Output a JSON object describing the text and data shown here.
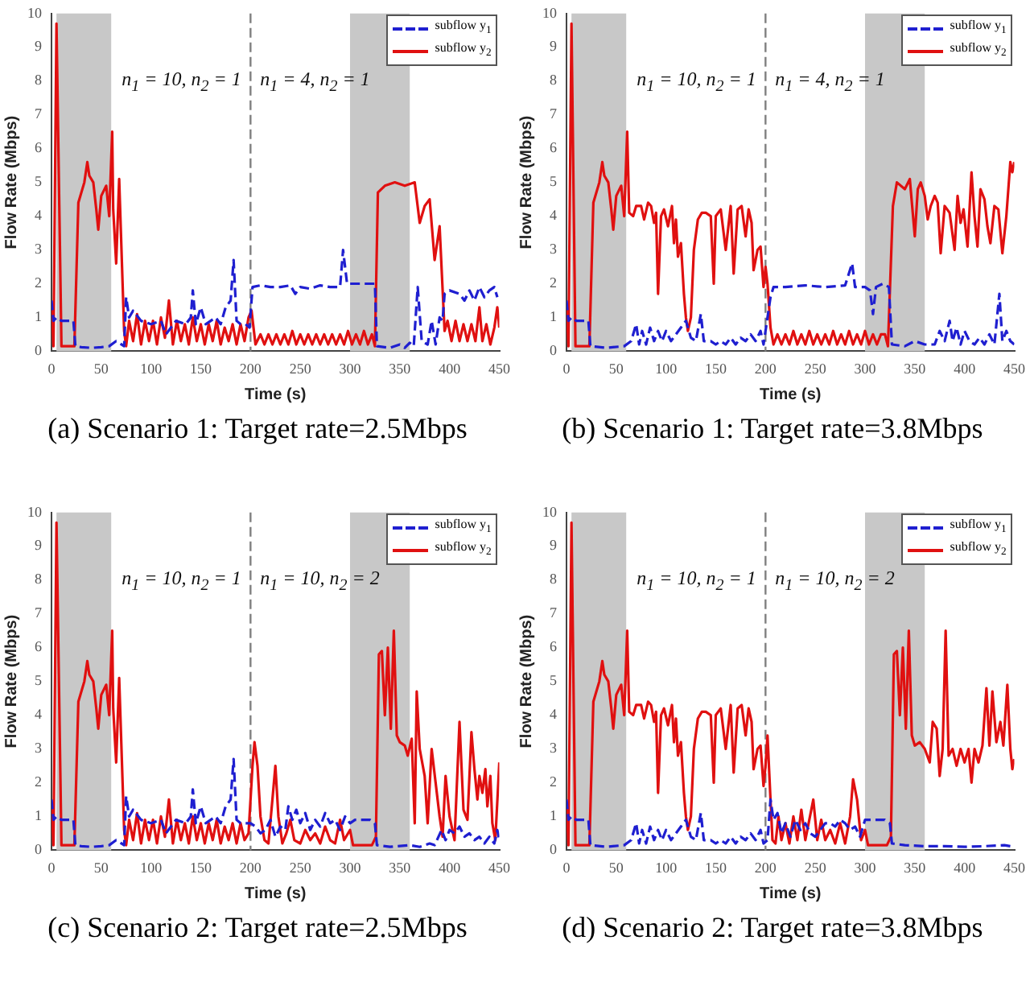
{
  "chart_data": [
    {
      "type": "line",
      "title": "(a) Scenario 1: Target rate=2.5Mbps",
      "xlabel": "Time (s)",
      "ylabel": "Flow Rate (Mbps)",
      "xlim": [
        0,
        450
      ],
      "ylim": [
        0,
        10
      ],
      "xticks": [
        0,
        50,
        100,
        150,
        200,
        250,
        300,
        350,
        400,
        450
      ],
      "yticks": [
        0,
        1,
        2,
        3,
        4,
        5,
        6,
        7,
        8,
        9,
        10
      ],
      "grid": false,
      "legend": "top right",
      "marker": "none",
      "annotations": [
        "n$_{1}$ = 10, n$_{2}$ = 1",
        "n$_{1}$ = 4, n$_{2}$ = 1"
      ],
      "ref_lines": [
        {
          "axis": "x",
          "value": 200,
          "color": "#808080",
          "line_style": "dashed"
        }
      ],
      "bands": [
        {
          "axis": "x",
          "from": 5,
          "to": 60,
          "color": "#c8c8c8"
        },
        {
          "axis": "x",
          "from": 300,
          "to": 360,
          "color": "#c8c8c8"
        }
      ],
      "series": [
        {
          "name": "subflow y$_{1}$",
          "color": "#1f1fd0",
          "line_style": "dashed",
          "x": [
            0,
            2,
            5,
            10,
            15,
            22,
            24,
            30,
            40,
            50,
            58,
            65,
            73,
            75,
            78,
            82,
            90,
            100,
            110,
            115,
            125,
            135,
            140,
            142,
            145,
            150,
            155,
            160,
            165,
            170,
            175,
            180,
            183,
            186,
            190,
            195,
            199,
            202,
            210,
            220,
            230,
            240,
            245,
            250,
            260,
            270,
            280,
            290,
            293,
            297,
            305,
            320,
            325,
            327,
            340,
            350,
            355,
            360,
            364,
            368,
            372,
            378,
            382,
            386,
            390,
            393,
            395,
            400,
            410,
            415,
            420,
            425,
            430,
            435,
            440,
            445,
            448
          ],
          "values": [
            1.5,
            0.9,
            1.0,
            0.9,
            0.9,
            0.9,
            0.15,
            0.12,
            0.1,
            0.12,
            0.15,
            0.3,
            0.15,
            1.6,
            1.0,
            1.2,
            0.9,
            0.8,
            0.9,
            0.5,
            0.9,
            0.8,
            1.0,
            1.8,
            0.8,
            1.3,
            0.8,
            0.9,
            1.0,
            0.8,
            1.3,
            1.5,
            2.7,
            0.9,
            0.8,
            0.8,
            0.7,
            1.9,
            1.95,
            1.9,
            1.9,
            1.95,
            1.7,
            1.9,
            1.85,
            1.95,
            1.9,
            1.9,
            3.0,
            2.0,
            2.0,
            2.0,
            2.0,
            0.15,
            0.1,
            0.2,
            0.1,
            0.25,
            0.15,
            1.9,
            0.3,
            0.2,
            0.9,
            0.2,
            1.0,
            0.9,
            1.7,
            1.8,
            1.7,
            1.5,
            1.8,
            1.5,
            1.9,
            1.6,
            1.8,
            1.9,
            1.6
          ]
        },
        {
          "name": "subflow y$_{2}$",
          "color": "#e01010",
          "line_style": "solid",
          "x": [
            0,
            2,
            5,
            10,
            23,
            27,
            33,
            36,
            38,
            42,
            45,
            47,
            50,
            55,
            58,
            61,
            62,
            65,
            68,
            73,
            75,
            78,
            82,
            86,
            90,
            94,
            98,
            102,
            106,
            110,
            114,
            118,
            122,
            126,
            130,
            134,
            138,
            142,
            146,
            150,
            154,
            158,
            162,
            166,
            170,
            174,
            178,
            182,
            186,
            190,
            194,
            198,
            201,
            205,
            210,
            214,
            218,
            222,
            226,
            230,
            234,
            238,
            242,
            246,
            250,
            254,
            258,
            262,
            266,
            270,
            274,
            278,
            282,
            286,
            290,
            294,
            298,
            302,
            306,
            310,
            314,
            318,
            322,
            325,
            328,
            335,
            345,
            355,
            365,
            370,
            375,
            380,
            385,
            390,
            395,
            398,
            402,
            406,
            410,
            414,
            418,
            422,
            426,
            430,
            433,
            437,
            441,
            445,
            448,
            450
          ],
          "values": [
            1.4,
            0.15,
            9.7,
            0.15,
            0.15,
            4.4,
            5.0,
            5.6,
            5.2,
            5.0,
            4.2,
            3.6,
            4.6,
            4.9,
            4.0,
            6.5,
            4.2,
            2.6,
            5.1,
            0.6,
            0.15,
            0.9,
            0.3,
            1.1,
            0.2,
            0.9,
            0.3,
            0.9,
            0.2,
            1.0,
            0.4,
            1.5,
            0.2,
            0.9,
            0.3,
            0.8,
            0.2,
            1.0,
            0.3,
            0.8,
            0.2,
            0.8,
            0.3,
            0.9,
            0.2,
            0.7,
            0.3,
            0.8,
            0.2,
            0.8,
            0.3,
            1.0,
            1.2,
            0.2,
            0.5,
            0.2,
            0.5,
            0.2,
            0.5,
            0.2,
            0.5,
            0.2,
            0.6,
            0.2,
            0.5,
            0.2,
            0.5,
            0.2,
            0.5,
            0.2,
            0.5,
            0.2,
            0.5,
            0.2,
            0.5,
            0.2,
            0.6,
            0.2,
            0.5,
            0.2,
            0.6,
            0.2,
            0.5,
            0.15,
            4.7,
            4.9,
            5.0,
            4.9,
            5.0,
            3.8,
            4.3,
            4.5,
            2.7,
            3.7,
            0.6,
            0.9,
            0.3,
            0.9,
            0.3,
            0.8,
            0.3,
            0.8,
            0.3,
            1.3,
            0.3,
            0.8,
            0.2,
            0.7,
            1.3,
            0.7
          ]
        }
      ]
    },
    {
      "type": "line",
      "title": "(b) Scenario 1: Target rate=3.8Mbps",
      "xlabel": "Time (s)",
      "ylabel": "Flow Rate (Mbps)",
      "xlim": [
        0,
        450
      ],
      "ylim": [
        0,
        10
      ],
      "xticks": [
        0,
        50,
        100,
        150,
        200,
        250,
        300,
        350,
        400,
        450
      ],
      "yticks": [
        0,
        1,
        2,
        3,
        4,
        5,
        6,
        7,
        8,
        9,
        10
      ],
      "grid": false,
      "legend": "top right",
      "marker": "none",
      "annotations": [
        "n$_{1}$ = 10, n$_{2}$ = 1",
        "n$_{1}$ = 4, n$_{2}$ = 1"
      ],
      "ref_lines": [
        {
          "axis": "x",
          "value": 200,
          "color": "#808080",
          "line_style": "dashed"
        }
      ],
      "bands": [
        {
          "axis": "x",
          "from": 5,
          "to": 60,
          "color": "#c8c8c8"
        },
        {
          "axis": "x",
          "from": 300,
          "to": 360,
          "color": "#c8c8c8"
        }
      ],
      "series": [
        {
          "name": "subflow y$_{1}$",
          "color": "#1f1fd0",
          "line_style": "dashed",
          "x": [
            0,
            2,
            5,
            10,
            22,
            24,
            40,
            58,
            65,
            70,
            73,
            76,
            80,
            84,
            88,
            92,
            96,
            100,
            105,
            110,
            115,
            120,
            125,
            130,
            135,
            138,
            145,
            150,
            155,
            160,
            165,
            170,
            175,
            180,
            185,
            190,
            195,
            198,
            202,
            205,
            208,
            220,
            240,
            260,
            280,
            287,
            290,
            300,
            305,
            308,
            311,
            318,
            324,
            327,
            340,
            350,
            360,
            370,
            375,
            380,
            385,
            388,
            392,
            396,
            400,
            405,
            410,
            415,
            420,
            425,
            430,
            435,
            438,
            442,
            446,
            450
          ],
          "values": [
            1.5,
            0.9,
            1.0,
            0.9,
            0.9,
            0.15,
            0.1,
            0.15,
            0.3,
            0.8,
            0.2,
            0.6,
            0.2,
            0.7,
            0.3,
            0.6,
            0.3,
            0.6,
            0.3,
            0.5,
            0.7,
            0.9,
            0.4,
            0.3,
            1.1,
            0.3,
            0.3,
            0.2,
            0.3,
            0.2,
            0.4,
            0.2,
            0.4,
            0.3,
            0.5,
            0.3,
            0.6,
            0.2,
            1.0,
            1.6,
            1.9,
            1.9,
            1.95,
            1.9,
            1.95,
            2.6,
            1.9,
            1.9,
            1.8,
            1.1,
            1.9,
            2.0,
            1.9,
            0.2,
            0.15,
            0.3,
            0.2,
            0.2,
            0.6,
            0.3,
            0.9,
            0.3,
            0.7,
            0.2,
            0.6,
            0.3,
            0.2,
            0.4,
            0.2,
            0.5,
            0.2,
            1.7,
            0.3,
            0.6,
            0.3,
            0.2
          ]
        },
        {
          "name": "subflow y$_{2}$",
          "color": "#e01010",
          "line_style": "solid",
          "x": [
            0,
            2,
            5,
            9,
            23,
            27,
            33,
            36,
            38,
            42,
            45,
            47,
            50,
            55,
            58,
            61,
            63,
            67,
            70,
            75,
            78,
            82,
            85,
            88,
            90,
            92,
            95,
            98,
            102,
            106,
            108,
            110,
            112,
            115,
            118,
            120,
            122,
            125,
            128,
            132,
            136,
            140,
            145,
            148,
            150,
            155,
            160,
            165,
            168,
            172,
            176,
            180,
            183,
            186,
            188,
            192,
            195,
            198,
            200,
            202,
            205,
            208,
            212,
            216,
            220,
            224,
            228,
            232,
            236,
            240,
            244,
            248,
            252,
            256,
            260,
            264,
            268,
            272,
            276,
            280,
            284,
            288,
            292,
            296,
            300,
            304,
            308,
            312,
            316,
            320,
            323,
            328,
            332,
            340,
            345,
            350,
            353,
            356,
            360,
            363,
            366,
            370,
            373,
            376,
            380,
            385,
            390,
            393,
            396,
            399,
            403,
            407,
            410,
            413,
            416,
            420,
            423,
            426,
            430,
            434,
            438,
            442,
            446,
            448,
            450
          ],
          "values": [
            1.4,
            0.15,
            9.7,
            0.15,
            0.15,
            4.4,
            5.0,
            5.6,
            5.2,
            5.0,
            4.2,
            3.6,
            4.6,
            4.9,
            4.0,
            6.5,
            4.1,
            4.0,
            4.3,
            4.3,
            3.9,
            4.4,
            4.3,
            3.8,
            4.1,
            1.7,
            4.0,
            4.2,
            3.7,
            4.3,
            3.2,
            3.9,
            2.8,
            3.2,
            1.7,
            1.0,
            0.6,
            1.0,
            3.0,
            3.9,
            4.1,
            4.1,
            4.0,
            2.0,
            4.0,
            4.2,
            3.0,
            4.3,
            2.3,
            4.2,
            4.3,
            3.4,
            4.2,
            3.8,
            2.4,
            3.0,
            3.1,
            1.9,
            2.5,
            2.0,
            0.7,
            0.2,
            0.5,
            0.2,
            0.5,
            0.2,
            0.6,
            0.2,
            0.5,
            0.2,
            0.6,
            0.2,
            0.5,
            0.2,
            0.5,
            0.2,
            0.6,
            0.2,
            0.5,
            0.2,
            0.6,
            0.2,
            0.5,
            0.2,
            0.6,
            0.2,
            0.5,
            0.2,
            0.5,
            0.5,
            0.15,
            4.3,
            5.0,
            4.8,
            5.1,
            3.4,
            4.8,
            5.0,
            4.6,
            3.9,
            4.3,
            4.6,
            4.4,
            2.9,
            4.3,
            4.1,
            3.0,
            4.6,
            3.8,
            4.2,
            3.1,
            5.3,
            4.0,
            3.1,
            4.8,
            4.5,
            3.7,
            3.2,
            4.3,
            4.2,
            2.9,
            4.0,
            5.6,
            5.3,
            5.6
          ]
        }
      ]
    },
    {
      "type": "line",
      "title": "(c) Scenario 2: Target rate=2.5Mbps",
      "xlabel": "Time (s)",
      "ylabel": "Flow Rate (Mbps)",
      "xlim": [
        0,
        450
      ],
      "ylim": [
        0,
        10
      ],
      "xticks": [
        0,
        50,
        100,
        150,
        200,
        250,
        300,
        350,
        400,
        450
      ],
      "yticks": [
        0,
        1,
        2,
        3,
        4,
        5,
        6,
        7,
        8,
        9,
        10
      ],
      "grid": false,
      "legend": "top right",
      "marker": "none",
      "annotations": [
        "n$_{1}$ = 10, n$_{2}$ = 1",
        "n$_{1}$ = 10, n$_{2}$ = 2"
      ],
      "ref_lines": [
        {
          "axis": "x",
          "value": 200,
          "color": "#808080",
          "line_style": "dashed"
        }
      ],
      "bands": [
        {
          "axis": "x",
          "from": 5,
          "to": 60,
          "color": "#c8c8c8"
        },
        {
          "axis": "x",
          "from": 300,
          "to": 360,
          "color": "#c8c8c8"
        }
      ],
      "series": [
        {
          "name": "subflow y$_{1}$",
          "color": "#1f1fd0",
          "line_style": "dashed",
          "x": [
            0,
            2,
            5,
            10,
            15,
            22,
            24,
            30,
            40,
            50,
            58,
            65,
            73,
            75,
            78,
            82,
            90,
            100,
            110,
            115,
            125,
            135,
            140,
            142,
            145,
            150,
            155,
            160,
            165,
            170,
            175,
            180,
            183,
            186,
            190,
            195,
            200,
            205,
            210,
            215,
            220,
            225,
            230,
            235,
            238,
            242,
            246,
            250,
            255,
            260,
            265,
            270,
            275,
            280,
            285,
            290,
            295,
            300,
            305,
            320,
            325,
            327,
            340,
            360,
            370,
            380,
            385,
            392,
            396,
            400,
            405,
            410,
            415,
            420,
            425,
            430,
            435,
            440,
            445,
            448,
            450
          ],
          "values": [
            1.5,
            0.9,
            1.0,
            0.9,
            0.9,
            0.9,
            0.15,
            0.12,
            0.1,
            0.12,
            0.15,
            0.3,
            0.15,
            1.6,
            1.0,
            1.2,
            0.9,
            0.8,
            0.9,
            0.5,
            0.9,
            0.8,
            1.0,
            1.8,
            0.8,
            1.3,
            0.8,
            0.9,
            1.0,
            0.8,
            1.3,
            1.5,
            2.7,
            0.9,
            0.8,
            0.8,
            0.8,
            0.7,
            0.5,
            0.6,
            0.9,
            0.4,
            0.7,
            0.6,
            1.3,
            0.9,
            1.2,
            0.8,
            1.1,
            0.6,
            0.9,
            0.7,
            1.1,
            0.8,
            0.9,
            0.6,
            1.0,
            0.8,
            0.9,
            0.9,
            0.8,
            0.15,
            0.1,
            0.15,
            0.1,
            0.2,
            0.15,
            0.6,
            0.3,
            0.6,
            0.5,
            0.7,
            0.4,
            0.5,
            0.3,
            0.4,
            0.2,
            0.4,
            0.2,
            0.6,
            0.3
          ]
        },
        {
          "name": "subflow y$_{2}$",
          "color": "#e01010",
          "line_style": "solid",
          "x": [
            0,
            2,
            5,
            10,
            23,
            27,
            33,
            36,
            38,
            42,
            45,
            47,
            50,
            55,
            58,
            61,
            62,
            65,
            68,
            73,
            75,
            78,
            82,
            86,
            90,
            94,
            98,
            102,
            106,
            110,
            114,
            118,
            122,
            126,
            130,
            134,
            138,
            142,
            146,
            150,
            154,
            158,
            162,
            166,
            170,
            174,
            178,
            182,
            186,
            190,
            194,
            198,
            202,
            204,
            207,
            210,
            214,
            218,
            222,
            225,
            228,
            232,
            236,
            240,
            244,
            250,
            255,
            260,
            265,
            270,
            275,
            280,
            285,
            290,
            294,
            300,
            303,
            322,
            326,
            329,
            332,
            335,
            338,
            341,
            344,
            347,
            350,
            355,
            358,
            362,
            365,
            367,
            370,
            375,
            378,
            382,
            386,
            390,
            393,
            396,
            400,
            405,
            410,
            414,
            418,
            422,
            425,
            428,
            430,
            433,
            436,
            438,
            441,
            443,
            446,
            450
          ],
          "values": [
            1.4,
            0.15,
            9.7,
            0.15,
            0.15,
            4.4,
            5.0,
            5.6,
            5.2,
            5.0,
            4.2,
            3.6,
            4.6,
            4.9,
            4.0,
            6.5,
            4.2,
            2.6,
            5.1,
            0.6,
            0.15,
            0.9,
            0.3,
            1.1,
            0.2,
            0.9,
            0.3,
            0.9,
            0.2,
            1.0,
            0.4,
            1.5,
            0.2,
            0.9,
            0.3,
            0.8,
            0.2,
            1.0,
            0.3,
            0.8,
            0.2,
            0.8,
            0.3,
            0.9,
            0.2,
            0.7,
            0.3,
            0.8,
            0.2,
            0.8,
            0.3,
            0.5,
            2.5,
            3.2,
            2.5,
            1.0,
            0.3,
            0.2,
            1.5,
            2.5,
            1.0,
            0.2,
            0.5,
            0.9,
            0.3,
            0.2,
            0.6,
            0.3,
            0.5,
            0.2,
            0.7,
            0.3,
            0.2,
            0.9,
            0.3,
            0.6,
            0.15,
            0.15,
            0.4,
            5.8,
            5.9,
            4.0,
            6.0,
            3.6,
            6.5,
            3.4,
            3.2,
            3.1,
            2.8,
            3.3,
            0.8,
            4.7,
            3.0,
            2.2,
            0.8,
            3.0,
            2.0,
            1.0,
            0.4,
            2.2,
            1.0,
            0.3,
            3.8,
            1.2,
            0.9,
            3.5,
            2.4,
            1.5,
            2.2,
            1.7,
            2.4,
            1.3,
            2.2,
            0.8,
            0.3,
            2.6
          ]
        }
      ]
    },
    {
      "type": "line",
      "title": "(d) Scenario 2: Target rate=3.8Mbps",
      "xlabel": "Time (s)",
      "ylabel": "Flow Rate (Mbps)",
      "xlim": [
        0,
        450
      ],
      "ylim": [
        0,
        10
      ],
      "xticks": [
        0,
        50,
        100,
        150,
        200,
        250,
        300,
        350,
        400,
        450
      ],
      "yticks": [
        0,
        1,
        2,
        3,
        4,
        5,
        6,
        7,
        8,
        9,
        10
      ],
      "grid": false,
      "legend": "top right",
      "marker": "none",
      "annotations": [
        "n$_{1}$ = 10, n$_{2}$ = 1",
        "n$_{1}$ = 10, n$_{2}$ = 2"
      ],
      "ref_lines": [
        {
          "axis": "x",
          "value": 200,
          "color": "#808080",
          "line_style": "dashed"
        }
      ],
      "bands": [
        {
          "axis": "x",
          "from": 5,
          "to": 60,
          "color": "#c8c8c8"
        },
        {
          "axis": "x",
          "from": 300,
          "to": 360,
          "color": "#c8c8c8"
        }
      ],
      "series": [
        {
          "name": "subflow y$_{1}$",
          "color": "#1f1fd0",
          "line_style": "dashed",
          "x": [
            0,
            2,
            5,
            10,
            22,
            24,
            40,
            58,
            65,
            70,
            73,
            76,
            80,
            84,
            88,
            92,
            96,
            100,
            105,
            110,
            115,
            120,
            125,
            130,
            135,
            138,
            145,
            150,
            155,
            160,
            165,
            170,
            175,
            180,
            185,
            190,
            195,
            198,
            202,
            205,
            208,
            212,
            216,
            220,
            225,
            230,
            235,
            240,
            245,
            250,
            255,
            260,
            265,
            270,
            275,
            280,
            285,
            290,
            295,
            300,
            310,
            320,
            325,
            327,
            340,
            360,
            380,
            400,
            420,
            440,
            450
          ],
          "values": [
            1.5,
            0.9,
            1.0,
            0.9,
            0.9,
            0.15,
            0.1,
            0.15,
            0.3,
            0.8,
            0.2,
            0.6,
            0.2,
            0.7,
            0.3,
            0.6,
            0.3,
            0.6,
            0.3,
            0.5,
            0.7,
            0.9,
            0.4,
            0.3,
            1.1,
            0.3,
            0.3,
            0.2,
            0.3,
            0.2,
            0.4,
            0.2,
            0.4,
            0.3,
            0.5,
            0.3,
            0.6,
            0.2,
            0.3,
            1.5,
            0.9,
            1.1,
            0.5,
            0.8,
            0.4,
            0.9,
            0.6,
            0.8,
            0.5,
            0.4,
            0.6,
            0.8,
            0.8,
            0.7,
            0.9,
            0.8,
            0.6,
            0.7,
            0.4,
            0.9,
            0.9,
            0.9,
            0.8,
            0.2,
            0.15,
            0.12,
            0.12,
            0.1,
            0.12,
            0.15,
            0.1
          ]
        },
        {
          "name": "subflow y$_{2}$",
          "color": "#e01010",
          "line_style": "solid",
          "x": [
            0,
            2,
            5,
            9,
            23,
            27,
            33,
            36,
            38,
            42,
            45,
            47,
            50,
            55,
            58,
            61,
            63,
            67,
            70,
            75,
            78,
            82,
            85,
            88,
            90,
            92,
            95,
            98,
            102,
            106,
            108,
            110,
            112,
            115,
            118,
            120,
            122,
            125,
            128,
            132,
            136,
            140,
            145,
            148,
            150,
            155,
            160,
            165,
            168,
            172,
            176,
            180,
            183,
            186,
            188,
            192,
            195,
            198,
            200,
            202,
            205,
            207,
            210,
            213,
            216,
            220,
            224,
            228,
            232,
            236,
            240,
            244,
            248,
            252,
            256,
            260,
            265,
            270,
            275,
            280,
            285,
            288,
            292,
            296,
            300,
            303,
            322,
            326,
            329,
            332,
            335,
            338,
            341,
            344,
            347,
            350,
            355,
            360,
            365,
            368,
            372,
            375,
            378,
            381,
            384,
            388,
            392,
            396,
            400,
            404,
            407,
            410,
            414,
            418,
            422,
            425,
            428,
            432,
            436,
            439,
            443,
            446,
            448,
            450
          ],
          "values": [
            1.4,
            0.15,
            9.7,
            0.15,
            0.15,
            4.4,
            5.0,
            5.6,
            5.2,
            5.0,
            4.2,
            3.6,
            4.6,
            4.9,
            4.0,
            6.5,
            4.1,
            4.0,
            4.3,
            4.3,
            3.9,
            4.4,
            4.3,
            3.8,
            4.1,
            1.7,
            4.0,
            4.2,
            3.7,
            4.3,
            3.2,
            3.9,
            2.8,
            3.2,
            1.7,
            1.0,
            0.6,
            1.0,
            3.0,
            3.9,
            4.1,
            4.1,
            4.0,
            2.0,
            4.0,
            4.2,
            3.0,
            4.3,
            2.3,
            4.2,
            4.3,
            3.4,
            4.2,
            3.8,
            2.4,
            3.0,
            3.1,
            1.9,
            2.5,
            3.4,
            1.5,
            0.3,
            0.2,
            1.0,
            0.3,
            0.8,
            0.2,
            1.0,
            0.3,
            1.2,
            0.3,
            0.9,
            1.5,
            0.3,
            0.9,
            0.3,
            0.6,
            0.2,
            0.8,
            0.2,
            1.0,
            2.1,
            1.5,
            0.3,
            0.6,
            0.15,
            0.15,
            0.4,
            5.8,
            5.9,
            4.0,
            6.0,
            3.6,
            6.5,
            3.4,
            3.1,
            3.2,
            3.0,
            2.6,
            3.8,
            3.6,
            2.2,
            3.0,
            6.5,
            2.8,
            3.0,
            2.5,
            3.0,
            2.6,
            3.0,
            2.0,
            3.0,
            2.6,
            3.1,
            4.8,
            3.1,
            4.7,
            3.2,
            3.8,
            3.1,
            4.9,
            3.0,
            2.4,
            2.7
          ]
        }
      ]
    }
  ]
}
